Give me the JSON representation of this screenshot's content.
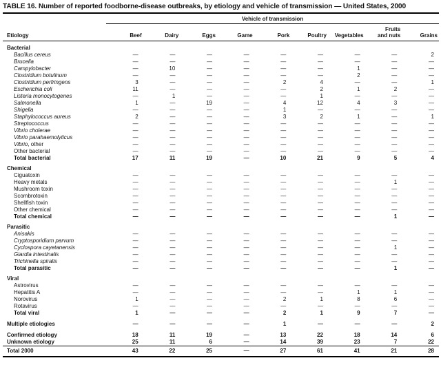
{
  "title": "TABLE 16. Number of reported foodborne-disease outbreaks, by etiology and vehicle of transmission — United States, 2000",
  "colors": {
    "background": "#ffffff",
    "text": "#141414",
    "rule": "#000000"
  },
  "table": {
    "spanner": "Vehicle of transmission",
    "etiology_header": "Etiology",
    "columns": [
      "Beef",
      "Dairy",
      "Eggs",
      "Game",
      "Pork",
      "Poultry",
      "Vegetables",
      "Fruits\nand nuts",
      "Grains"
    ],
    "empty_marker": "—",
    "sections": [
      {
        "label": "Bacterial",
        "rows": [
          {
            "label": "Bacillus cereus",
            "italic": true,
            "values": [
              "—",
              "—",
              "—",
              "—",
              "—",
              "—",
              "—",
              "—",
              "2"
            ]
          },
          {
            "label": "Brucella",
            "italic": true,
            "values": [
              "—",
              "—",
              "—",
              "—",
              "—",
              "—",
              "—",
              "—",
              "—"
            ]
          },
          {
            "label": "Campylobacter",
            "italic": true,
            "values": [
              "—",
              "10",
              "—",
              "—",
              "—",
              "—",
              "1",
              "—",
              "—"
            ]
          },
          {
            "label": "Clostridium botulinum",
            "italic": true,
            "values": [
              "—",
              "—",
              "—",
              "—",
              "—",
              "—",
              "2",
              "—",
              "—"
            ]
          },
          {
            "label": "Clostridium perfringens",
            "italic": true,
            "values": [
              "3",
              "—",
              "—",
              "—",
              "2",
              "4",
              "—",
              "—",
              "1"
            ]
          },
          {
            "label": "Escherichia coli",
            "italic": true,
            "values": [
              "11",
              "—",
              "—",
              "—",
              "—",
              "2",
              "1",
              "2",
              "—"
            ]
          },
          {
            "label": "Listeria monocytogenes",
            "italic": true,
            "values": [
              "—",
              "1",
              "—",
              "—",
              "—",
              "1",
              "—",
              "—",
              "—"
            ]
          },
          {
            "label": "Salmonella",
            "italic": true,
            "values": [
              "1",
              "—",
              "19",
              "—",
              "4",
              "12",
              "4",
              "3",
              "—"
            ]
          },
          {
            "label": "Shigella",
            "italic": true,
            "values": [
              "—",
              "—",
              "—",
              "—",
              "1",
              "—",
              "—",
              "—",
              "—"
            ]
          },
          {
            "label": "Staphylococcus aureus",
            "italic": true,
            "values": [
              "2",
              "—",
              "—",
              "—",
              "3",
              "2",
              "1",
              "—",
              "1"
            ]
          },
          {
            "label": "Streptococcus",
            "italic": true,
            "values": [
              "—",
              "—",
              "—",
              "—",
              "—",
              "—",
              "—",
              "—",
              "—"
            ]
          },
          {
            "label": "Vibrio cholerae",
            "italic": true,
            "values": [
              "—",
              "—",
              "—",
              "—",
              "—",
              "—",
              "—",
              "—",
              "—"
            ]
          },
          {
            "label": "Vibrio parahaemolyticus",
            "italic": true,
            "values": [
              "—",
              "—",
              "—",
              "—",
              "—",
              "—",
              "—",
              "—",
              "—"
            ]
          },
          {
            "label": "Vibrio",
            "label_suffix": ", other",
            "italic": true,
            "values": [
              "—",
              "—",
              "—",
              "—",
              "—",
              "—",
              "—",
              "—",
              "—"
            ]
          },
          {
            "label": "Other bacterial",
            "italic": false,
            "values": [
              "—",
              "—",
              "—",
              "—",
              "—",
              "—",
              "—",
              "—",
              "—"
            ]
          },
          {
            "label": "Total bacterial",
            "italic": false,
            "bold": true,
            "values": [
              "17",
              "11",
              "19",
              "—",
              "10",
              "21",
              "9",
              "5",
              "4"
            ]
          }
        ]
      },
      {
        "label": "Chemical",
        "rows": [
          {
            "label": "Ciguatoxin",
            "italic": false,
            "values": [
              "—",
              "—",
              "—",
              "—",
              "—",
              "—",
              "—",
              "—",
              "—"
            ]
          },
          {
            "label": "Heavy metals",
            "italic": false,
            "values": [
              "—",
              "—",
              "—",
              "—",
              "—",
              "—",
              "—",
              "1",
              "—"
            ]
          },
          {
            "label": "Mushroom toxin",
            "italic": false,
            "values": [
              "—",
              "—",
              "—",
              "—",
              "—",
              "—",
              "—",
              "—",
              "—"
            ]
          },
          {
            "label": "Scombrotoxin",
            "italic": false,
            "values": [
              "—",
              "—",
              "—",
              "—",
              "—",
              "—",
              "—",
              "—",
              "—"
            ]
          },
          {
            "label": "Shellfish toxin",
            "italic": false,
            "values": [
              "—",
              "—",
              "—",
              "—",
              "—",
              "—",
              "—",
              "—",
              "—"
            ]
          },
          {
            "label": "Other chemical",
            "italic": false,
            "values": [
              "—",
              "—",
              "—",
              "—",
              "—",
              "—",
              "—",
              "—",
              "—"
            ]
          },
          {
            "label": "Total chemical",
            "italic": false,
            "bold": true,
            "values": [
              "—",
              "—",
              "—",
              "—",
              "—",
              "—",
              "—",
              "1",
              "—"
            ]
          }
        ]
      },
      {
        "label": "Parasitic",
        "rows": [
          {
            "label": "Anisakis",
            "italic": true,
            "values": [
              "—",
              "—",
              "—",
              "—",
              "—",
              "—",
              "—",
              "—",
              "—"
            ]
          },
          {
            "label": "Cryptosporidium parvum",
            "italic": true,
            "values": [
              "—",
              "—",
              "—",
              "—",
              "—",
              "—",
              "—",
              "—",
              "—"
            ]
          },
          {
            "label": "Cyclospora cayetanensis",
            "italic": true,
            "values": [
              "—",
              "—",
              "—",
              "—",
              "—",
              "—",
              "—",
              "1",
              "—"
            ]
          },
          {
            "label": "Giardia intestinalis",
            "italic": true,
            "values": [
              "—",
              "—",
              "—",
              "—",
              "—",
              "—",
              "—",
              "—",
              "—"
            ]
          },
          {
            "label": "Trichinella spiralis",
            "italic": true,
            "values": [
              "—",
              "—",
              "—",
              "—",
              "—",
              "—",
              "—",
              "—",
              "—"
            ]
          },
          {
            "label": "Total parasitic",
            "italic": false,
            "bold": true,
            "values": [
              "—",
              "—",
              "—",
              "—",
              "—",
              "—",
              "—",
              "1",
              "—"
            ]
          }
        ]
      },
      {
        "label": "Viral",
        "rows": [
          {
            "label": "Astrovirus",
            "italic": false,
            "values": [
              "—",
              "—",
              "—",
              "—",
              "—",
              "—",
              "—",
              "—",
              "—"
            ]
          },
          {
            "label": "Hepatitis A",
            "italic": false,
            "values": [
              "—",
              "—",
              "—",
              "—",
              "—",
              "—",
              "1",
              "1",
              "—"
            ]
          },
          {
            "label": "Norovirus",
            "italic": false,
            "values": [
              "1",
              "—",
              "—",
              "—",
              "2",
              "1",
              "8",
              "6",
              "—"
            ]
          },
          {
            "label": "Rotavirus",
            "italic": false,
            "values": [
              "—",
              "—",
              "—",
              "—",
              "—",
              "—",
              "—",
              "—",
              "—"
            ]
          },
          {
            "label": "Total viral",
            "italic": false,
            "bold": true,
            "values": [
              "1",
              "—",
              "—",
              "—",
              "2",
              "1",
              "9",
              "7",
              "—"
            ]
          }
        ]
      }
    ],
    "multiple_etiologies": {
      "label": "Multiple etiologies",
      "values": [
        "—",
        "—",
        "—",
        "—",
        "1",
        "—",
        "—",
        "—",
        "2"
      ]
    },
    "summary_rows": [
      {
        "label": "Confirmed etiology",
        "values": [
          "18",
          "11",
          "19",
          "—",
          "13",
          "22",
          "18",
          "14",
          "6"
        ]
      },
      {
        "label": "Unknown etiology",
        "values": [
          "25",
          "11",
          "6",
          "—",
          "14",
          "39",
          "23",
          "7",
          "22"
        ]
      }
    ],
    "total_row": {
      "label": "Total 2000",
      "values": [
        "43",
        "22",
        "25",
        "—",
        "27",
        "61",
        "41",
        "21",
        "28"
      ]
    }
  }
}
